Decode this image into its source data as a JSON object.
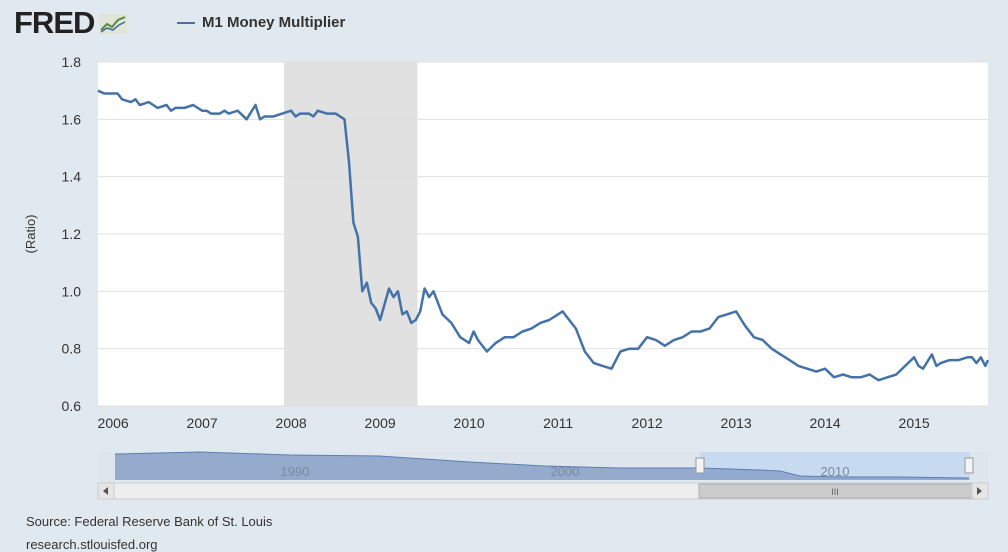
{
  "brand": {
    "name": "FRED",
    "icon": "fred-line-chart-icon"
  },
  "colors": {
    "series": "#4572a7",
    "background": "#e1e9f0",
    "recession": "#e1e1e1",
    "navigator_fill": "#8fa8cc",
    "navigator_selected": "#c7daf0"
  },
  "source": {
    "line1": "Source: Federal Reserve Bank of St. Louis",
    "line2": "research.stlouisfed.org"
  },
  "chart_data": {
    "type": "line",
    "title": "",
    "ylabel": "(Ratio)",
    "xlabel": "",
    "ylim": [
      0.6,
      1.8
    ],
    "xlim": [
      2005.83,
      2015.83
    ],
    "yticks": [
      "0.6",
      "0.8",
      "1.0",
      "1.2",
      "1.4",
      "1.6",
      "1.8"
    ],
    "xticks": [
      "2006",
      "2007",
      "2008",
      "2009",
      "2010",
      "2011",
      "2012",
      "2013",
      "2014",
      "2015"
    ],
    "grid": true,
    "legend_position": "top-left",
    "recession_shading": [
      [
        2007.92,
        2009.42
      ]
    ],
    "series": [
      {
        "name": "M1 Money Multiplier",
        "x": [
          2005.83,
          2005.9,
          2006.0,
          2006.05,
          2006.1,
          2006.2,
          2006.25,
          2006.3,
          2006.4,
          2006.45,
          2006.5,
          2006.6,
          2006.65,
          2006.7,
          2006.8,
          2006.9,
          2007.0,
          2007.05,
          2007.1,
          2007.2,
          2007.25,
          2007.3,
          2007.4,
          2007.5,
          2007.6,
          2007.65,
          2007.7,
          2007.8,
          2007.9,
          2008.0,
          2008.05,
          2008.1,
          2008.2,
          2008.25,
          2008.3,
          2008.4,
          2008.5,
          2008.6,
          2008.65,
          2008.7,
          2008.75,
          2008.8,
          2008.85,
          2008.9,
          2008.95,
          2009.0,
          2009.1,
          2009.15,
          2009.2,
          2009.25,
          2009.3,
          2009.35,
          2009.4,
          2009.45,
          2009.5,
          2009.55,
          2009.6,
          2009.7,
          2009.8,
          2009.9,
          2010.0,
          2010.05,
          2010.1,
          2010.2,
          2010.3,
          2010.4,
          2010.5,
          2010.6,
          2010.7,
          2010.8,
          2010.9,
          2011.0,
          2011.05,
          2011.1,
          2011.2,
          2011.3,
          2011.4,
          2011.5,
          2011.6,
          2011.7,
          2011.8,
          2011.9,
          2012.0,
          2012.1,
          2012.2,
          2012.3,
          2012.4,
          2012.5,
          2012.6,
          2012.7,
          2012.8,
          2012.9,
          2013.0,
          2013.1,
          2013.2,
          2013.3,
          2013.4,
          2013.5,
          2013.6,
          2013.7,
          2013.8,
          2013.9,
          2014.0,
          2014.1,
          2014.2,
          2014.3,
          2014.4,
          2014.5,
          2014.6,
          2014.7,
          2014.8,
          2014.9,
          2015.0,
          2015.05,
          2015.1,
          2015.2,
          2015.25,
          2015.3,
          2015.4,
          2015.5,
          2015.6,
          2015.65,
          2015.7,
          2015.75,
          2015.8,
          2015.83
        ],
        "values": [
          1.7,
          1.69,
          1.69,
          1.69,
          1.67,
          1.66,
          1.67,
          1.65,
          1.66,
          1.65,
          1.64,
          1.65,
          1.63,
          1.64,
          1.64,
          1.65,
          1.63,
          1.63,
          1.62,
          1.62,
          1.63,
          1.62,
          1.63,
          1.6,
          1.65,
          1.6,
          1.61,
          1.61,
          1.62,
          1.63,
          1.61,
          1.62,
          1.62,
          1.61,
          1.63,
          1.62,
          1.62,
          1.6,
          1.45,
          1.24,
          1.19,
          1.0,
          1.03,
          0.96,
          0.94,
          0.9,
          1.01,
          0.98,
          1.0,
          0.92,
          0.93,
          0.89,
          0.9,
          0.93,
          1.01,
          0.98,
          1.0,
          0.92,
          0.89,
          0.84,
          0.82,
          0.86,
          0.83,
          0.79,
          0.82,
          0.84,
          0.84,
          0.86,
          0.87,
          0.89,
          0.9,
          0.92,
          0.93,
          0.91,
          0.87,
          0.79,
          0.75,
          0.74,
          0.73,
          0.79,
          0.8,
          0.8,
          0.84,
          0.83,
          0.81,
          0.83,
          0.84,
          0.86,
          0.86,
          0.87,
          0.91,
          0.92,
          0.93,
          0.88,
          0.84,
          0.83,
          0.8,
          0.78,
          0.76,
          0.74,
          0.73,
          0.72,
          0.73,
          0.7,
          0.71,
          0.7,
          0.7,
          0.71,
          0.69,
          0.7,
          0.71,
          0.74,
          0.77,
          0.74,
          0.73,
          0.78,
          0.74,
          0.75,
          0.76,
          0.76,
          0.77,
          0.77,
          0.75,
          0.77,
          0.74,
          0.76
        ]
      }
    ],
    "navigator": {
      "labels": [
        "1990",
        "2000",
        "2010"
      ],
      "selected_range": [
        2005.83,
        2015.83
      ]
    }
  }
}
